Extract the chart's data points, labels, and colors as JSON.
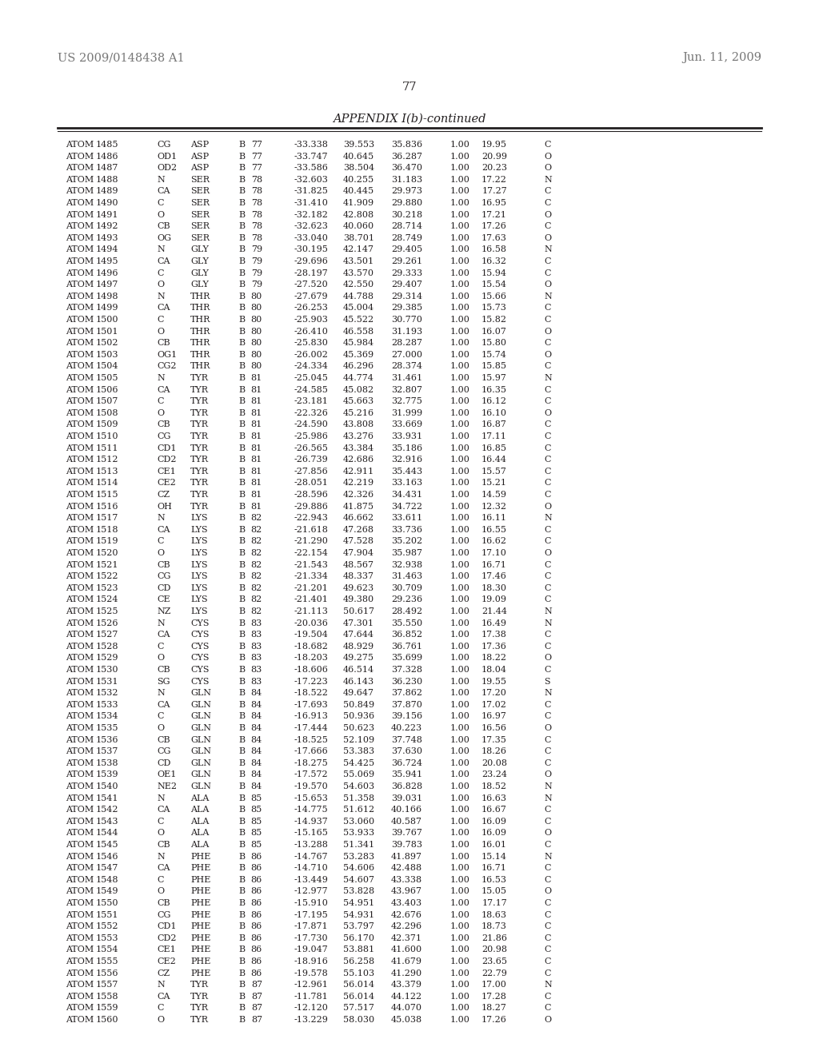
{
  "header_left": "US 2009/0148438 A1",
  "header_right": "Jun. 11, 2009",
  "page_number": "77",
  "appendix_title": "APPENDIX I(b)-continued",
  "background_color": "#ffffff",
  "text_color": "#231f20",
  "header_color": "#777777",
  "rows": [
    [
      "ATOM",
      "1485",
      "CG",
      "ASP",
      "B",
      "77",
      "-33.338",
      "39.553",
      "35.836",
      "1.00",
      "19.95",
      "C"
    ],
    [
      "ATOM",
      "1486",
      "OD1",
      "ASP",
      "B",
      "77",
      "-33.747",
      "40.645",
      "36.287",
      "1.00",
      "20.99",
      "O"
    ],
    [
      "ATOM",
      "1487",
      "OD2",
      "ASP",
      "B",
      "77",
      "-33.586",
      "38.504",
      "36.470",
      "1.00",
      "20.23",
      "O"
    ],
    [
      "ATOM",
      "1488",
      "N",
      "SER",
      "B",
      "78",
      "-32.603",
      "40.255",
      "31.183",
      "1.00",
      "17.22",
      "N"
    ],
    [
      "ATOM",
      "1489",
      "CA",
      "SER",
      "B",
      "78",
      "-31.825",
      "40.445",
      "29.973",
      "1.00",
      "17.27",
      "C"
    ],
    [
      "ATOM",
      "1490",
      "C",
      "SER",
      "B",
      "78",
      "-31.410",
      "41.909",
      "29.880",
      "1.00",
      "16.95",
      "C"
    ],
    [
      "ATOM",
      "1491",
      "O",
      "SER",
      "B",
      "78",
      "-32.182",
      "42.808",
      "30.218",
      "1.00",
      "17.21",
      "O"
    ],
    [
      "ATOM",
      "1492",
      "CB",
      "SER",
      "B",
      "78",
      "-32.623",
      "40.060",
      "28.714",
      "1.00",
      "17.26",
      "C"
    ],
    [
      "ATOM",
      "1493",
      "OG",
      "SER",
      "B",
      "78",
      "-33.040",
      "38.701",
      "28.749",
      "1.00",
      "17.63",
      "O"
    ],
    [
      "ATOM",
      "1494",
      "N",
      "GLY",
      "B",
      "79",
      "-30.195",
      "42.147",
      "29.405",
      "1.00",
      "16.58",
      "N"
    ],
    [
      "ATOM",
      "1495",
      "CA",
      "GLY",
      "B",
      "79",
      "-29.696",
      "43.501",
      "29.261",
      "1.00",
      "16.32",
      "C"
    ],
    [
      "ATOM",
      "1496",
      "C",
      "GLY",
      "B",
      "79",
      "-28.197",
      "43.570",
      "29.333",
      "1.00",
      "15.94",
      "C"
    ],
    [
      "ATOM",
      "1497",
      "O",
      "GLY",
      "B",
      "79",
      "-27.520",
      "42.550",
      "29.407",
      "1.00",
      "15.54",
      "O"
    ],
    [
      "ATOM",
      "1498",
      "N",
      "THR",
      "B",
      "80",
      "-27.679",
      "44.788",
      "29.314",
      "1.00",
      "15.66",
      "N"
    ],
    [
      "ATOM",
      "1499",
      "CA",
      "THR",
      "B",
      "80",
      "-26.253",
      "45.004",
      "29.385",
      "1.00",
      "15.73",
      "C"
    ],
    [
      "ATOM",
      "1500",
      "C",
      "THR",
      "B",
      "80",
      "-25.903",
      "45.522",
      "30.770",
      "1.00",
      "15.82",
      "C"
    ],
    [
      "ATOM",
      "1501",
      "O",
      "THR",
      "B",
      "80",
      "-26.410",
      "46.558",
      "31.193",
      "1.00",
      "16.07",
      "O"
    ],
    [
      "ATOM",
      "1502",
      "CB",
      "THR",
      "B",
      "80",
      "-25.830",
      "45.984",
      "28.287",
      "1.00",
      "15.80",
      "C"
    ],
    [
      "ATOM",
      "1503",
      "OG1",
      "THR",
      "B",
      "80",
      "-26.002",
      "45.369",
      "27.000",
      "1.00",
      "15.74",
      "O"
    ],
    [
      "ATOM",
      "1504",
      "CG2",
      "THR",
      "B",
      "80",
      "-24.334",
      "46.296",
      "28.374",
      "1.00",
      "15.85",
      "C"
    ],
    [
      "ATOM",
      "1505",
      "N",
      "TYR",
      "B",
      "81",
      "-25.045",
      "44.774",
      "31.461",
      "1.00",
      "15.97",
      "N"
    ],
    [
      "ATOM",
      "1506",
      "CA",
      "TYR",
      "B",
      "81",
      "-24.585",
      "45.082",
      "32.807",
      "1.00",
      "16.35",
      "C"
    ],
    [
      "ATOM",
      "1507",
      "C",
      "TYR",
      "B",
      "81",
      "-23.181",
      "45.663",
      "32.775",
      "1.00",
      "16.12",
      "C"
    ],
    [
      "ATOM",
      "1508",
      "O",
      "TYR",
      "B",
      "81",
      "-22.326",
      "45.216",
      "31.999",
      "1.00",
      "16.10",
      "O"
    ],
    [
      "ATOM",
      "1509",
      "CB",
      "TYR",
      "B",
      "81",
      "-24.590",
      "43.808",
      "33.669",
      "1.00",
      "16.87",
      "C"
    ],
    [
      "ATOM",
      "1510",
      "CG",
      "TYR",
      "B",
      "81",
      "-25.986",
      "43.276",
      "33.931",
      "1.00",
      "17.11",
      "C"
    ],
    [
      "ATOM",
      "1511",
      "CD1",
      "TYR",
      "B",
      "81",
      "-26.565",
      "43.384",
      "35.186",
      "1.00",
      "16.85",
      "C"
    ],
    [
      "ATOM",
      "1512",
      "CD2",
      "TYR",
      "B",
      "81",
      "-26.739",
      "42.686",
      "32.916",
      "1.00",
      "16.44",
      "C"
    ],
    [
      "ATOM",
      "1513",
      "CE1",
      "TYR",
      "B",
      "81",
      "-27.856",
      "42.911",
      "35.443",
      "1.00",
      "15.57",
      "C"
    ],
    [
      "ATOM",
      "1514",
      "CE2",
      "TYR",
      "B",
      "81",
      "-28.051",
      "42.219",
      "33.163",
      "1.00",
      "15.21",
      "C"
    ],
    [
      "ATOM",
      "1515",
      "CZ",
      "TYR",
      "B",
      "81",
      "-28.596",
      "42.326",
      "34.431",
      "1.00",
      "14.59",
      "C"
    ],
    [
      "ATOM",
      "1516",
      "OH",
      "TYR",
      "B",
      "81",
      "-29.886",
      "41.875",
      "34.722",
      "1.00",
      "12.32",
      "O"
    ],
    [
      "ATOM",
      "1517",
      "N",
      "LYS",
      "B",
      "82",
      "-22.943",
      "46.662",
      "33.611",
      "1.00",
      "16.11",
      "N"
    ],
    [
      "ATOM",
      "1518",
      "CA",
      "LYS",
      "B",
      "82",
      "-21.618",
      "47.268",
      "33.736",
      "1.00",
      "16.55",
      "C"
    ],
    [
      "ATOM",
      "1519",
      "C",
      "LYS",
      "B",
      "82",
      "-21.290",
      "47.528",
      "35.202",
      "1.00",
      "16.62",
      "C"
    ],
    [
      "ATOM",
      "1520",
      "O",
      "LYS",
      "B",
      "82",
      "-22.154",
      "47.904",
      "35.987",
      "1.00",
      "17.10",
      "O"
    ],
    [
      "ATOM",
      "1521",
      "CB",
      "LYS",
      "B",
      "82",
      "-21.543",
      "48.567",
      "32.938",
      "1.00",
      "16.71",
      "C"
    ],
    [
      "ATOM",
      "1522",
      "CG",
      "LYS",
      "B",
      "82",
      "-21.334",
      "48.337",
      "31.463",
      "1.00",
      "17.46",
      "C"
    ],
    [
      "ATOM",
      "1523",
      "CD",
      "LYS",
      "B",
      "82",
      "-21.201",
      "49.623",
      "30.709",
      "1.00",
      "18.30",
      "C"
    ],
    [
      "ATOM",
      "1524",
      "CE",
      "LYS",
      "B",
      "82",
      "-21.401",
      "49.380",
      "29.236",
      "1.00",
      "19.09",
      "C"
    ],
    [
      "ATOM",
      "1525",
      "NZ",
      "LYS",
      "B",
      "82",
      "-21.113",
      "50.617",
      "28.492",
      "1.00",
      "21.44",
      "N"
    ],
    [
      "ATOM",
      "1526",
      "N",
      "CYS",
      "B",
      "83",
      "-20.036",
      "47.301",
      "35.550",
      "1.00",
      "16.49",
      "N"
    ],
    [
      "ATOM",
      "1527",
      "CA",
      "CYS",
      "B",
      "83",
      "-19.504",
      "47.644",
      "36.852",
      "1.00",
      "17.38",
      "C"
    ],
    [
      "ATOM",
      "1528",
      "C",
      "CYS",
      "B",
      "83",
      "-18.682",
      "48.929",
      "36.761",
      "1.00",
      "17.36",
      "C"
    ],
    [
      "ATOM",
      "1529",
      "O",
      "CYS",
      "B",
      "83",
      "-18.203",
      "49.275",
      "35.699",
      "1.00",
      "18.22",
      "O"
    ],
    [
      "ATOM",
      "1530",
      "CB",
      "CYS",
      "B",
      "83",
      "-18.606",
      "46.514",
      "37.328",
      "1.00",
      "18.04",
      "C"
    ],
    [
      "ATOM",
      "1531",
      "SG",
      "CYS",
      "B",
      "83",
      "-17.223",
      "46.143",
      "36.230",
      "1.00",
      "19.55",
      "S"
    ],
    [
      "ATOM",
      "1532",
      "N",
      "GLN",
      "B",
      "84",
      "-18.522",
      "49.647",
      "37.862",
      "1.00",
      "17.20",
      "N"
    ],
    [
      "ATOM",
      "1533",
      "CA",
      "GLN",
      "B",
      "84",
      "-17.693",
      "50.849",
      "37.870",
      "1.00",
      "17.02",
      "C"
    ],
    [
      "ATOM",
      "1534",
      "C",
      "GLN",
      "B",
      "84",
      "-16.913",
      "50.936",
      "39.156",
      "1.00",
      "16.97",
      "C"
    ],
    [
      "ATOM",
      "1535",
      "O",
      "GLN",
      "B",
      "84",
      "-17.444",
      "50.623",
      "40.223",
      "1.00",
      "16.56",
      "O"
    ],
    [
      "ATOM",
      "1536",
      "CB",
      "GLN",
      "B",
      "84",
      "-18.525",
      "52.109",
      "37.748",
      "1.00",
      "17.35",
      "C"
    ],
    [
      "ATOM",
      "1537",
      "CG",
      "GLN",
      "B",
      "84",
      "-17.666",
      "53.383",
      "37.630",
      "1.00",
      "18.26",
      "C"
    ],
    [
      "ATOM",
      "1538",
      "CD",
      "GLN",
      "B",
      "84",
      "-18.275",
      "54.425",
      "36.724",
      "1.00",
      "20.08",
      "C"
    ],
    [
      "ATOM",
      "1539",
      "OE1",
      "GLN",
      "B",
      "84",
      "-17.572",
      "55.069",
      "35.941",
      "1.00",
      "23.24",
      "O"
    ],
    [
      "ATOM",
      "1540",
      "NE2",
      "GLN",
      "B",
      "84",
      "-19.570",
      "54.603",
      "36.828",
      "1.00",
      "18.52",
      "N"
    ],
    [
      "ATOM",
      "1541",
      "N",
      "ALA",
      "B",
      "85",
      "-15.653",
      "51.358",
      "39.031",
      "1.00",
      "16.63",
      "N"
    ],
    [
      "ATOM",
      "1542",
      "CA",
      "ALA",
      "B",
      "85",
      "-14.775",
      "51.612",
      "40.166",
      "1.00",
      "16.67",
      "C"
    ],
    [
      "ATOM",
      "1543",
      "C",
      "ALA",
      "B",
      "85",
      "-14.937",
      "53.060",
      "40.587",
      "1.00",
      "16.09",
      "C"
    ],
    [
      "ATOM",
      "1544",
      "O",
      "ALA",
      "B",
      "85",
      "-15.165",
      "53.933",
      "39.767",
      "1.00",
      "16.09",
      "O"
    ],
    [
      "ATOM",
      "1545",
      "CB",
      "ALA",
      "B",
      "85",
      "-13.288",
      "51.341",
      "39.783",
      "1.00",
      "16.01",
      "C"
    ],
    [
      "ATOM",
      "1546",
      "N",
      "PHE",
      "B",
      "86",
      "-14.767",
      "53.283",
      "41.897",
      "1.00",
      "15.14",
      "N"
    ],
    [
      "ATOM",
      "1547",
      "CA",
      "PHE",
      "B",
      "86",
      "-14.710",
      "54.606",
      "42.488",
      "1.00",
      "16.71",
      "C"
    ],
    [
      "ATOM",
      "1548",
      "C",
      "PHE",
      "B",
      "86",
      "-13.449",
      "54.607",
      "43.338",
      "1.00",
      "16.53",
      "C"
    ],
    [
      "ATOM",
      "1549",
      "O",
      "PHE",
      "B",
      "86",
      "-12.977",
      "53.828",
      "43.967",
      "1.00",
      "15.05",
      "O"
    ],
    [
      "ATOM",
      "1550",
      "CB",
      "PHE",
      "B",
      "86",
      "-15.910",
      "54.951",
      "43.403",
      "1.00",
      "17.17",
      "C"
    ],
    [
      "ATOM",
      "1551",
      "CG",
      "PHE",
      "B",
      "86",
      "-17.195",
      "54.931",
      "42.676",
      "1.00",
      "18.63",
      "C"
    ],
    [
      "ATOM",
      "1552",
      "CD1",
      "PHE",
      "B",
      "86",
      "-17.871",
      "53.797",
      "42.296",
      "1.00",
      "18.73",
      "C"
    ],
    [
      "ATOM",
      "1553",
      "CD2",
      "PHE",
      "B",
      "86",
      "-17.730",
      "56.170",
      "42.371",
      "1.00",
      "21.86",
      "C"
    ],
    [
      "ATOM",
      "1554",
      "CE1",
      "PHE",
      "B",
      "86",
      "-19.047",
      "53.881",
      "41.600",
      "1.00",
      "20.98",
      "C"
    ],
    [
      "ATOM",
      "1555",
      "CE2",
      "PHE",
      "B",
      "86",
      "-18.916",
      "56.258",
      "41.679",
      "1.00",
      "23.65",
      "C"
    ],
    [
      "ATOM",
      "1556",
      "CZ",
      "PHE",
      "B",
      "86",
      "-19.578",
      "55.103",
      "41.290",
      "1.00",
      "22.79",
      "C"
    ],
    [
      "ATOM",
      "1557",
      "N",
      "TYR",
      "B",
      "87",
      "-12.961",
      "56.014",
      "43.379",
      "1.00",
      "17.00",
      "N"
    ],
    [
      "ATOM",
      "1558",
      "CA",
      "TYR",
      "B",
      "87",
      "-11.781",
      "56.014",
      "44.122",
      "1.00",
      "17.28",
      "C"
    ],
    [
      "ATOM",
      "1559",
      "C",
      "TYR",
      "B",
      "87",
      "-12.120",
      "57.517",
      "44.070",
      "1.00",
      "18.27",
      "C"
    ],
    [
      "ATOM",
      "1560",
      "O",
      "TYR",
      "B",
      "87",
      "-13.229",
      "58.030",
      "45.038",
      "1.00",
      "17.26",
      "O"
    ]
  ]
}
